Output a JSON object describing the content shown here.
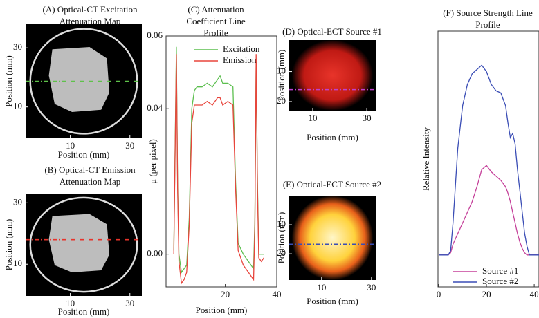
{
  "chart_data": [
    {
      "type": "image",
      "title": [
        "(A)  Optical-CT Excitation",
        "Attenuation Map"
      ],
      "xlabel": "Position (mm)",
      "ylabel": "Position (mm)",
      "xlim": [
        -5,
        34
      ],
      "ylim": [
        -0.6,
        38
      ],
      "xticks": [
        10,
        30
      ],
      "yticks": [
        30,
        10
      ],
      "colormap": "gray",
      "profile_y": 18.7,
      "profile_color": "#5ec24a"
    },
    {
      "type": "image",
      "title": [
        "(B)  Optical-CT Emission",
        "Attenuation Map"
      ],
      "xlabel": "Position (mm)",
      "ylabel": "Position (mm)",
      "xlim": [
        -5,
        34
      ],
      "ylim": [
        -0.3,
        33
      ],
      "xticks": [
        10,
        30
      ],
      "yticks": [
        30,
        10
      ],
      "colormap": "gray",
      "profile_y": 18,
      "profile_color": "#e8332a"
    },
    {
      "type": "line",
      "title": [
        "(C)  Attenuation",
        "Coefficient Line",
        "Profile"
      ],
      "xlabel": "Position (mm)",
      "ylabel": "μ (per pixel)",
      "xlim": [
        -3,
        40
      ],
      "ylim": [
        -0.009,
        0.06
      ],
      "xticks": [
        20,
        40
      ],
      "yticks": [
        {
          "value": 0,
          "label": "0.00"
        },
        0.04,
        0.06
      ],
      "legend": "top-right",
      "x": [
        0,
        1,
        1.5,
        2,
        3,
        4,
        5,
        6,
        7,
        8,
        9,
        11,
        13,
        15,
        17,
        18,
        19,
        21,
        23,
        24,
        25,
        27,
        29,
        31,
        31.5,
        32,
        32.5,
        33,
        34,
        35
      ],
      "series": [
        {
          "name": "Excitation",
          "color": "#5cbf4f",
          "values": [
            0.001,
            0.057,
            0.02,
            0.0,
            -0.005,
            -0.004,
            -0.003,
            0.01,
            0.04,
            0.045,
            0.046,
            0.046,
            0.047,
            0.046,
            0.048,
            0.049,
            0.047,
            0.047,
            0.046,
            0.02,
            0.003,
            0.0,
            -0.002,
            -0.004,
            0.01,
            0.053,
            0.02,
            0.0,
            0.0,
            0.0
          ]
        },
        {
          "name": "Emission",
          "color": "#e8453c",
          "values": [
            0.0,
            0.055,
            0.018,
            -0.002,
            -0.008,
            -0.007,
            -0.005,
            0.008,
            0.036,
            0.041,
            0.041,
            0.041,
            0.042,
            0.041,
            0.043,
            0.043,
            0.041,
            0.042,
            0.041,
            0.018,
            0.001,
            -0.003,
            -0.005,
            -0.007,
            0.008,
            0.055,
            0.018,
            -0.001,
            -0.002,
            -0.001
          ]
        }
      ]
    },
    {
      "type": "image",
      "title": [
        "(D)  Optical-ECT Source #1"
      ],
      "xlabel": "Position (mm)",
      "ylabel": "Position (mm)",
      "xlim": [
        1.3,
        33.3
      ],
      "ylim": [
        23,
        -0.5
      ],
      "xticks": [
        10,
        30
      ],
      "yticks": [
        10,
        20
      ],
      "colormap": "hot",
      "color": "#e8342a",
      "profile_y": 16,
      "profile_color": "#c040d0"
    },
    {
      "type": "image",
      "title": [
        "(E)  Optical-ECT Source #2"
      ],
      "xlabel": "Position (mm)",
      "ylabel": "Position (mm)",
      "xlim": [
        -3,
        31.7
      ],
      "ylim": [
        29,
        0
      ],
      "xticks": [
        10,
        30
      ],
      "yticks": [
        10,
        20
      ],
      "colormap": "hot",
      "color": "#ffe27a",
      "profile_y": 16.7,
      "profile_color": "#3a4db5"
    },
    {
      "type": "line",
      "title": [
        "(F)  Source Strength Line",
        "Profile"
      ],
      "ylabel": "Relative Intensity",
      "xlim": [
        -0.3,
        42
      ],
      "ylim": [
        -0.15,
        1.05
      ],
      "xticks": [
        0,
        20,
        40
      ],
      "legend": "bottom-left",
      "x": [
        0,
        2,
        4,
        5,
        6,
        8,
        10,
        12,
        14,
        16,
        18,
        20,
        22,
        24,
        26,
        28,
        29,
        30,
        31,
        32,
        33,
        34,
        35,
        36,
        37,
        38,
        40,
        42
      ],
      "series": [
        {
          "name": "Source #1",
          "color": "#c5419a",
          "values": [
            0,
            0,
            0,
            0.01,
            0.05,
            0.1,
            0.15,
            0.2,
            0.25,
            0.32,
            0.4,
            0.42,
            0.39,
            0.37,
            0.35,
            0.32,
            0.29,
            0.25,
            0.2,
            0.15,
            0.1,
            0.06,
            0.03,
            0.01,
            0,
            0,
            0,
            0
          ]
        },
        {
          "name": "Source #2",
          "color": "#3a4db5",
          "values": [
            0,
            0,
            0,
            0.02,
            0.15,
            0.5,
            0.7,
            0.8,
            0.85,
            0.87,
            0.89,
            0.86,
            0.8,
            0.77,
            0.76,
            0.7,
            0.62,
            0.55,
            0.57,
            0.52,
            0.4,
            0.3,
            0.2,
            0.1,
            0.04,
            0,
            0,
            0
          ]
        }
      ]
    }
  ]
}
